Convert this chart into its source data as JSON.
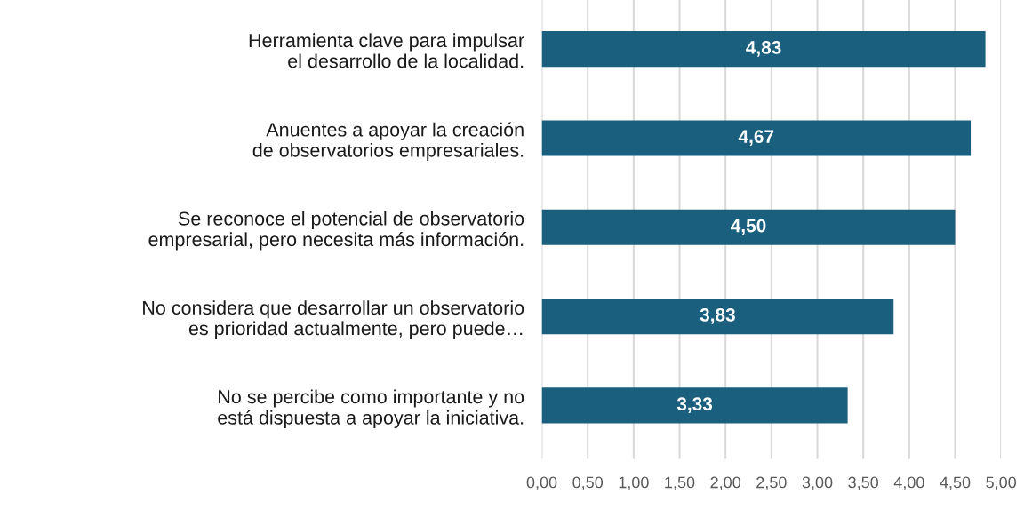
{
  "chart_data": {
    "type": "bar",
    "orientation": "horizontal",
    "categories": [
      "Herramienta clave para impulsar el desarrollo de la localidad.",
      "Anuentes a apoyar la creación de observatorios empresariales.",
      "Se reconoce el potencial de observatorio empresarial, pero necesita más información.",
      "No considera que desarrollar un observatorio es prioridad actualmente, pero puede…",
      "No se percibe como importante y no está dispuesta a apoyar la iniciativa."
    ],
    "values": [
      4.83,
      4.67,
      4.5,
      3.83,
      3.33
    ],
    "value_labels": [
      "4,83",
      "4,67",
      "4,50",
      "3,83",
      "3,33"
    ],
    "color": "#1b5f7e",
    "xlim": [
      0,
      5
    ],
    "xticks": [
      {
        "value": 0,
        "label": "0,00"
      },
      {
        "value": 0.5,
        "label": "0,50"
      },
      {
        "value": 1,
        "label": "1,00"
      },
      {
        "value": 1.5,
        "label": "1,50"
      },
      {
        "value": 2,
        "label": "2,00"
      },
      {
        "value": 2.5,
        "label": "2,50"
      },
      {
        "value": 3,
        "label": "3,00"
      },
      {
        "value": 3.5,
        "label": "3,50"
      },
      {
        "value": 4,
        "label": "4,00"
      },
      {
        "value": 4.5,
        "label": "4,50"
      },
      {
        "value": 5,
        "label": "5,00"
      }
    ],
    "grid": "x",
    "legend": false
  }
}
